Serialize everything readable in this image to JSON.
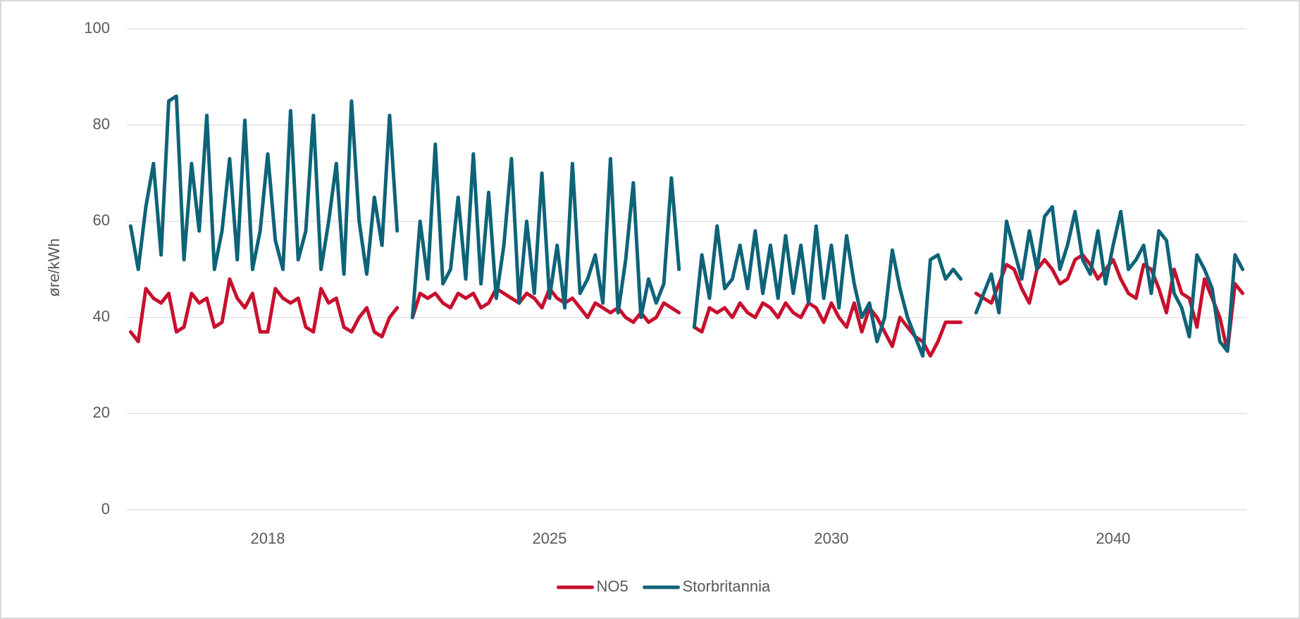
{
  "chart_data": {
    "type": "line",
    "ylabel": "øre/kWh",
    "categories": [
      null,
      null,
      null,
      null,
      null,
      null,
      null,
      null,
      null,
      null,
      null,
      null,
      null,
      null,
      null,
      null,
      null,
      null,
      "2018",
      null,
      null,
      null,
      null,
      null,
      null,
      null,
      null,
      null,
      null,
      null,
      null,
      null,
      null,
      null,
      null,
      null,
      null,
      null,
      null,
      null,
      null,
      null,
      null,
      null,
      null,
      null,
      null,
      null,
      null,
      null,
      null,
      null,
      null,
      null,
      null,
      "2025",
      null,
      null,
      null,
      null,
      null,
      null,
      null,
      null,
      null,
      null,
      null,
      null,
      null,
      null,
      null,
      null,
      null,
      null,
      null,
      null,
      null,
      null,
      null,
      null,
      null,
      null,
      null,
      null,
      null,
      null,
      null,
      null,
      null,
      null,
      null,
      null,
      "2030",
      null,
      null,
      null,
      null,
      null,
      null,
      null,
      null,
      null,
      null,
      null,
      null,
      null,
      null,
      null,
      null,
      null,
      null,
      null,
      null,
      null,
      null,
      null,
      null,
      null,
      null,
      null,
      null,
      null,
      null,
      null,
      null,
      null,
      null,
      null,
      null,
      "2040",
      null,
      null,
      null,
      null,
      null,
      null,
      null,
      null,
      null,
      null,
      null,
      null,
      null,
      null,
      null,
      null,
      null
    ],
    "series": [
      {
        "name": "NO5",
        "color": "#c8102e",
        "values": [
          37,
          35,
          46,
          44,
          43,
          45,
          37,
          38,
          45,
          43,
          44,
          38,
          39,
          48,
          44,
          42,
          45,
          37,
          37,
          46,
          44,
          43,
          44,
          38,
          37,
          46,
          43,
          44,
          38,
          37,
          40,
          42,
          37,
          36,
          40,
          42,
          null,
          40,
          45,
          44,
          45,
          43,
          42,
          45,
          44,
          45,
          42,
          43,
          46,
          45,
          44,
          43,
          45,
          44,
          42,
          46,
          44,
          43,
          44,
          42,
          40,
          43,
          42,
          41,
          42,
          40,
          39,
          41,
          39,
          40,
          43,
          42,
          41,
          null,
          38,
          37,
          42,
          41,
          42,
          40,
          43,
          41,
          40,
          43,
          42,
          40,
          43,
          41,
          40,
          43,
          42,
          39,
          43,
          40,
          38,
          43,
          37,
          42,
          40,
          37,
          34,
          40,
          38,
          36,
          35,
          32,
          35,
          39,
          39,
          39,
          null,
          45,
          44,
          43,
          47,
          51,
          50,
          46,
          43,
          50,
          52,
          50,
          47,
          48,
          52,
          53,
          51,
          48,
          50,
          52,
          48,
          45,
          44,
          51,
          50,
          46,
          41,
          50,
          45,
          44,
          38,
          48,
          44,
          40,
          33,
          47,
          45
        ]
      },
      {
        "name": "Storbritannia",
        "color": "#0e6378",
        "values": [
          59,
          50,
          63,
          72,
          53,
          85,
          86,
          52,
          72,
          58,
          82,
          50,
          58,
          73,
          52,
          81,
          50,
          58,
          74,
          56,
          50,
          83,
          52,
          58,
          82,
          50,
          60,
          72,
          49,
          85,
          60,
          49,
          65,
          55,
          82,
          58,
          null,
          40,
          60,
          48,
          76,
          47,
          50,
          65,
          48,
          74,
          47,
          66,
          44,
          55,
          73,
          43,
          60,
          45,
          70,
          44,
          55,
          42,
          72,
          45,
          48,
          53,
          43,
          73,
          41,
          52,
          68,
          40,
          48,
          43,
          47,
          69,
          50,
          null,
          38,
          53,
          44,
          59,
          46,
          48,
          55,
          46,
          58,
          45,
          55,
          44,
          57,
          45,
          55,
          43,
          59,
          44,
          55,
          42,
          57,
          47,
          40,
          43,
          35,
          40,
          54,
          46,
          40,
          36,
          32,
          52,
          53,
          48,
          50,
          48,
          null,
          41,
          45,
          49,
          41,
          60,
          54,
          48,
          58,
          50,
          61,
          63,
          50,
          55,
          62,
          52,
          49,
          58,
          47,
          55,
          62,
          50,
          52,
          55,
          45,
          58,
          56,
          45,
          42,
          36,
          53,
          50,
          46,
          35,
          33,
          53,
          50
        ]
      }
    ],
    "ylim": [
      0,
      100
    ],
    "yticks": [
      0,
      20,
      40,
      60,
      80,
      100
    ],
    "grid": true,
    "legend": "bottom"
  }
}
